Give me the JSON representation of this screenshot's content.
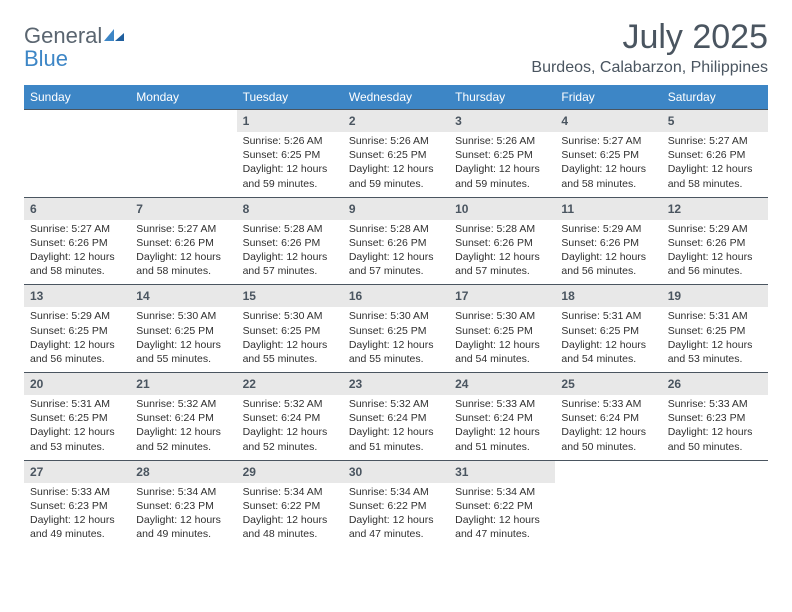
{
  "logo": {
    "general": "General",
    "blue": "Blue"
  },
  "title": "July 2025",
  "location": "Burdeos, Calabarzon, Philippines",
  "colors": {
    "header_bg": "#3d86c6",
    "header_text": "#ffffff",
    "daynum_bg": "#e8e8e8",
    "text": "#4a5560",
    "body_text": "#303030",
    "rule": "#4a5560"
  },
  "day_headers": [
    "Sunday",
    "Monday",
    "Tuesday",
    "Wednesday",
    "Thursday",
    "Friday",
    "Saturday"
  ],
  "weeks": [
    {
      "nums": [
        "",
        "",
        "1",
        "2",
        "3",
        "4",
        "5"
      ],
      "cells": [
        null,
        null,
        {
          "sr": "Sunrise: 5:26 AM",
          "ss": "Sunset: 6:25 PM",
          "dl": "Daylight: 12 hours and 59 minutes."
        },
        {
          "sr": "Sunrise: 5:26 AM",
          "ss": "Sunset: 6:25 PM",
          "dl": "Daylight: 12 hours and 59 minutes."
        },
        {
          "sr": "Sunrise: 5:26 AM",
          "ss": "Sunset: 6:25 PM",
          "dl": "Daylight: 12 hours and 59 minutes."
        },
        {
          "sr": "Sunrise: 5:27 AM",
          "ss": "Sunset: 6:25 PM",
          "dl": "Daylight: 12 hours and 58 minutes."
        },
        {
          "sr": "Sunrise: 5:27 AM",
          "ss": "Sunset: 6:26 PM",
          "dl": "Daylight: 12 hours and 58 minutes."
        }
      ]
    },
    {
      "nums": [
        "6",
        "7",
        "8",
        "9",
        "10",
        "11",
        "12"
      ],
      "cells": [
        {
          "sr": "Sunrise: 5:27 AM",
          "ss": "Sunset: 6:26 PM",
          "dl": "Daylight: 12 hours and 58 minutes."
        },
        {
          "sr": "Sunrise: 5:27 AM",
          "ss": "Sunset: 6:26 PM",
          "dl": "Daylight: 12 hours and 58 minutes."
        },
        {
          "sr": "Sunrise: 5:28 AM",
          "ss": "Sunset: 6:26 PM",
          "dl": "Daylight: 12 hours and 57 minutes."
        },
        {
          "sr": "Sunrise: 5:28 AM",
          "ss": "Sunset: 6:26 PM",
          "dl": "Daylight: 12 hours and 57 minutes."
        },
        {
          "sr": "Sunrise: 5:28 AM",
          "ss": "Sunset: 6:26 PM",
          "dl": "Daylight: 12 hours and 57 minutes."
        },
        {
          "sr": "Sunrise: 5:29 AM",
          "ss": "Sunset: 6:26 PM",
          "dl": "Daylight: 12 hours and 56 minutes."
        },
        {
          "sr": "Sunrise: 5:29 AM",
          "ss": "Sunset: 6:26 PM",
          "dl": "Daylight: 12 hours and 56 minutes."
        }
      ]
    },
    {
      "nums": [
        "13",
        "14",
        "15",
        "16",
        "17",
        "18",
        "19"
      ],
      "cells": [
        {
          "sr": "Sunrise: 5:29 AM",
          "ss": "Sunset: 6:25 PM",
          "dl": "Daylight: 12 hours and 56 minutes."
        },
        {
          "sr": "Sunrise: 5:30 AM",
          "ss": "Sunset: 6:25 PM",
          "dl": "Daylight: 12 hours and 55 minutes."
        },
        {
          "sr": "Sunrise: 5:30 AM",
          "ss": "Sunset: 6:25 PM",
          "dl": "Daylight: 12 hours and 55 minutes."
        },
        {
          "sr": "Sunrise: 5:30 AM",
          "ss": "Sunset: 6:25 PM",
          "dl": "Daylight: 12 hours and 55 minutes."
        },
        {
          "sr": "Sunrise: 5:30 AM",
          "ss": "Sunset: 6:25 PM",
          "dl": "Daylight: 12 hours and 54 minutes."
        },
        {
          "sr": "Sunrise: 5:31 AM",
          "ss": "Sunset: 6:25 PM",
          "dl": "Daylight: 12 hours and 54 minutes."
        },
        {
          "sr": "Sunrise: 5:31 AM",
          "ss": "Sunset: 6:25 PM",
          "dl": "Daylight: 12 hours and 53 minutes."
        }
      ]
    },
    {
      "nums": [
        "20",
        "21",
        "22",
        "23",
        "24",
        "25",
        "26"
      ],
      "cells": [
        {
          "sr": "Sunrise: 5:31 AM",
          "ss": "Sunset: 6:25 PM",
          "dl": "Daylight: 12 hours and 53 minutes."
        },
        {
          "sr": "Sunrise: 5:32 AM",
          "ss": "Sunset: 6:24 PM",
          "dl": "Daylight: 12 hours and 52 minutes."
        },
        {
          "sr": "Sunrise: 5:32 AM",
          "ss": "Sunset: 6:24 PM",
          "dl": "Daylight: 12 hours and 52 minutes."
        },
        {
          "sr": "Sunrise: 5:32 AM",
          "ss": "Sunset: 6:24 PM",
          "dl": "Daylight: 12 hours and 51 minutes."
        },
        {
          "sr": "Sunrise: 5:33 AM",
          "ss": "Sunset: 6:24 PM",
          "dl": "Daylight: 12 hours and 51 minutes."
        },
        {
          "sr": "Sunrise: 5:33 AM",
          "ss": "Sunset: 6:24 PM",
          "dl": "Daylight: 12 hours and 50 minutes."
        },
        {
          "sr": "Sunrise: 5:33 AM",
          "ss": "Sunset: 6:23 PM",
          "dl": "Daylight: 12 hours and 50 minutes."
        }
      ]
    },
    {
      "nums": [
        "27",
        "28",
        "29",
        "30",
        "31",
        "",
        ""
      ],
      "cells": [
        {
          "sr": "Sunrise: 5:33 AM",
          "ss": "Sunset: 6:23 PM",
          "dl": "Daylight: 12 hours and 49 minutes."
        },
        {
          "sr": "Sunrise: 5:34 AM",
          "ss": "Sunset: 6:23 PM",
          "dl": "Daylight: 12 hours and 49 minutes."
        },
        {
          "sr": "Sunrise: 5:34 AM",
          "ss": "Sunset: 6:22 PM",
          "dl": "Daylight: 12 hours and 48 minutes."
        },
        {
          "sr": "Sunrise: 5:34 AM",
          "ss": "Sunset: 6:22 PM",
          "dl": "Daylight: 12 hours and 47 minutes."
        },
        {
          "sr": "Sunrise: 5:34 AM",
          "ss": "Sunset: 6:22 PM",
          "dl": "Daylight: 12 hours and 47 minutes."
        },
        null,
        null
      ]
    }
  ]
}
